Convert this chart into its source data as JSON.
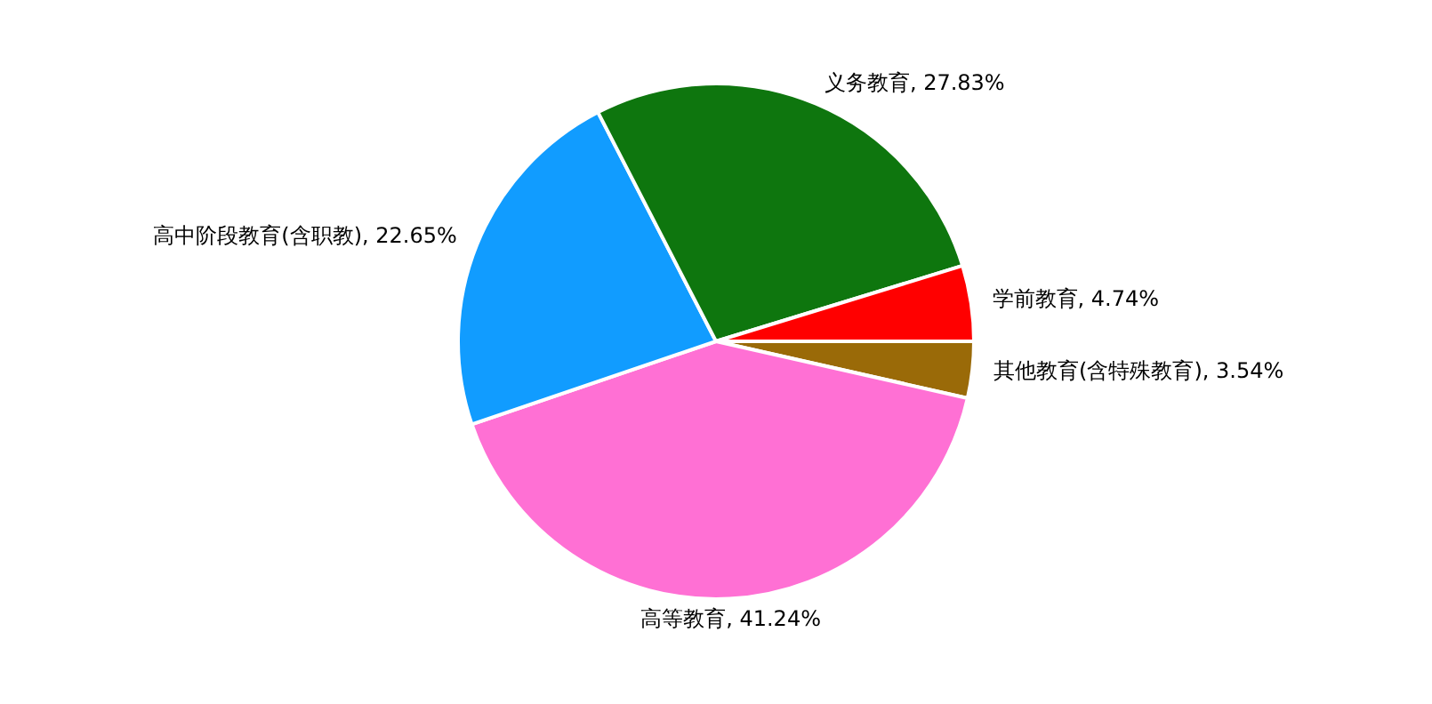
{
  "chart_data": {
    "type": "pie",
    "categories": [
      "其他教育(含特殊教育)",
      "高等教育",
      "高中阶段教育(含职教)",
      "义务教育",
      "学前教育"
    ],
    "values": [
      3.54,
      41.24,
      22.65,
      27.83,
      4.74
    ],
    "colors": [
      "#9a6a08",
      "#ff70d4",
      "#119cff",
      "#0e760e",
      "#ff0000"
    ],
    "value_labels": [
      "3.54%",
      "41.24%",
      "22.65%",
      "27.83%",
      "4.74%"
    ],
    "legend": false
  }
}
